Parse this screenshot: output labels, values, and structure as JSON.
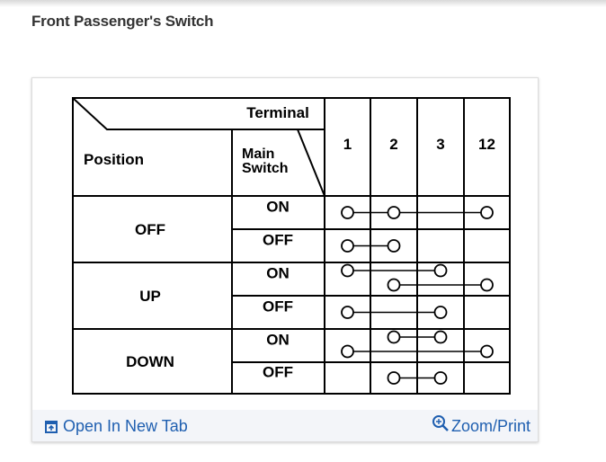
{
  "title": "Front Passenger's Switch",
  "diagram": {
    "header_terminal": "Terminal",
    "header_position": "Position",
    "header_main_switch_1": "Main",
    "header_main_switch_2": "Switch",
    "terminals": [
      "1",
      "2",
      "3",
      "12"
    ],
    "positions": [
      {
        "label": "OFF",
        "rows": [
          {
            "main": "ON",
            "connections": [
              [
                "1",
                "2",
                "12"
              ]
            ]
          },
          {
            "main": "OFF",
            "connections": [
              [
                "1",
                "2"
              ]
            ]
          }
        ]
      },
      {
        "label": "UP",
        "rows": [
          {
            "main": "ON",
            "connections": [
              [
                "1",
                "3"
              ],
              [
                "2",
                "12"
              ]
            ]
          },
          {
            "main": "OFF",
            "connections": [
              [
                "1",
                "3"
              ]
            ]
          }
        ]
      },
      {
        "label": "DOWN",
        "rows": [
          {
            "main": "ON",
            "connections": [
              [
                "2",
                "3"
              ],
              [
                "1",
                "12"
              ]
            ]
          },
          {
            "main": "OFF",
            "connections": [
              [
                "2",
                "3"
              ]
            ]
          }
        ]
      }
    ]
  },
  "footer": {
    "open_new_tab": "Open In New Tab",
    "zoom_print": "Zoom/Print"
  },
  "colors": {
    "link": "#1f5fb0",
    "footer_bg": "#f3f5f9"
  }
}
